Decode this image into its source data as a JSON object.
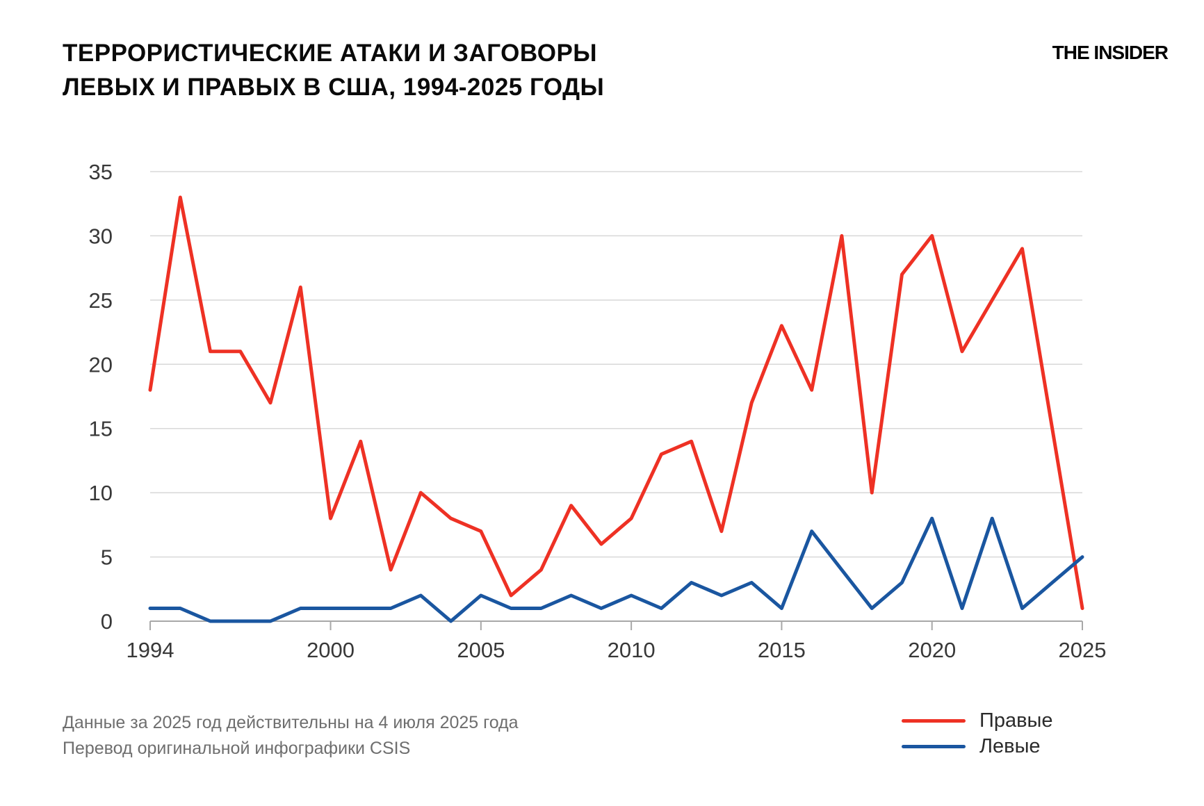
{
  "header": {
    "title_line1": "ТЕРРОРИСТИЧЕСКИЕ АТАКИ И ЗАГОВОРЫ",
    "title_line2": "ЛЕВЫХ И ПРАВЫХ В США, 1994-2025 ГОДЫ",
    "logo": "THE INSIDER"
  },
  "chart_data": {
    "type": "line",
    "title": "Террористические атаки и заговоры левых и правых в США, 1994-2025 годы",
    "x": [
      1994,
      1995,
      1996,
      1997,
      1998,
      1999,
      2000,
      2001,
      2002,
      2003,
      2004,
      2005,
      2006,
      2007,
      2008,
      2009,
      2010,
      2011,
      2012,
      2013,
      2014,
      2015,
      2016,
      2017,
      2018,
      2019,
      2020,
      2021,
      2022,
      2023,
      2024,
      2025
    ],
    "series": [
      {
        "name": "Правые",
        "color": "#EE3124",
        "values": [
          18,
          33,
          21,
          21,
          17,
          26,
          8,
          14,
          4,
          10,
          8,
          7,
          2,
          4,
          9,
          6,
          8,
          13,
          14,
          7,
          17,
          23,
          18,
          30,
          10,
          27,
          30,
          21,
          25,
          29,
          15,
          1
        ]
      },
      {
        "name": "Левые",
        "color": "#1A56A0",
        "values": [
          1,
          1,
          0,
          0,
          0,
          1,
          1,
          1,
          1,
          2,
          0,
          2,
          1,
          1,
          2,
          1,
          2,
          1,
          3,
          2,
          3,
          1,
          7,
          4,
          1,
          3,
          8,
          1,
          8,
          1,
          3,
          5
        ]
      }
    ],
    "xlim": [
      1994,
      2025
    ],
    "ylim": [
      0,
      35
    ],
    "y_ticks": [
      0,
      5,
      10,
      15,
      20,
      25,
      30,
      35
    ],
    "x_ticks": [
      1994,
      2000,
      2005,
      2010,
      2015,
      2020,
      2025
    ],
    "grid": "horizontal-only",
    "legend_position": "bottom-right"
  },
  "legend": {
    "items": [
      {
        "label": "Правые",
        "color": "#EE3124"
      },
      {
        "label": "Левые",
        "color": "#1A56A0"
      }
    ]
  },
  "footnotes": {
    "line1": "Данные за 2025 год действительны на 4 июля 2025 года",
    "line2": "Перевод оригинальной инфографики CSIS"
  },
  "colors": {
    "grid": "#D8D8D8",
    "axis": "#A8A8A8",
    "tick_label": "#383838",
    "footnote": "#6E6E6E"
  }
}
